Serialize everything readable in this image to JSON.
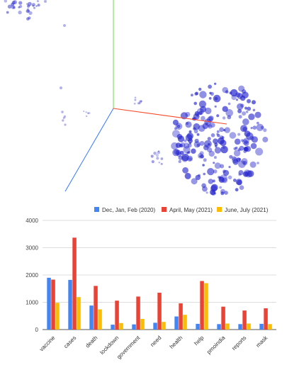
{
  "embedding_view": {
    "type": "3d-scatter",
    "point_color": "#2222cc",
    "axis_colors": {
      "x": "#ff4422",
      "y": "#66dd44",
      "z": "#3377ff"
    }
  },
  "chart_data": {
    "type": "bar",
    "categories": [
      "vaccine",
      "cases",
      "death",
      "lockdown",
      "government",
      "need",
      "health",
      "help",
      "pmoindia",
      "reports",
      "mask"
    ],
    "series": [
      {
        "name": "Dec, Jan, Feb (2020)",
        "color": "#4285f4",
        "values": [
          1900,
          1820,
          880,
          180,
          190,
          250,
          480,
          210,
          200,
          200,
          210
        ]
      },
      {
        "name": "April, May (2021)",
        "color": "#ea4335",
        "values": [
          1830,
          3370,
          1600,
          1060,
          1210,
          1350,
          960,
          1780,
          840,
          700,
          780
        ]
      },
      {
        "name": "June, July (2021)",
        "color": "#fbbc04",
        "values": [
          980,
          1190,
          740,
          240,
          390,
          280,
          540,
          1700,
          220,
          220,
          200
        ]
      }
    ],
    "ylim": [
      0,
      4000
    ],
    "yticks": [
      0,
      1000,
      2000,
      3000,
      4000
    ],
    "grid": true,
    "legend_position": "top"
  }
}
